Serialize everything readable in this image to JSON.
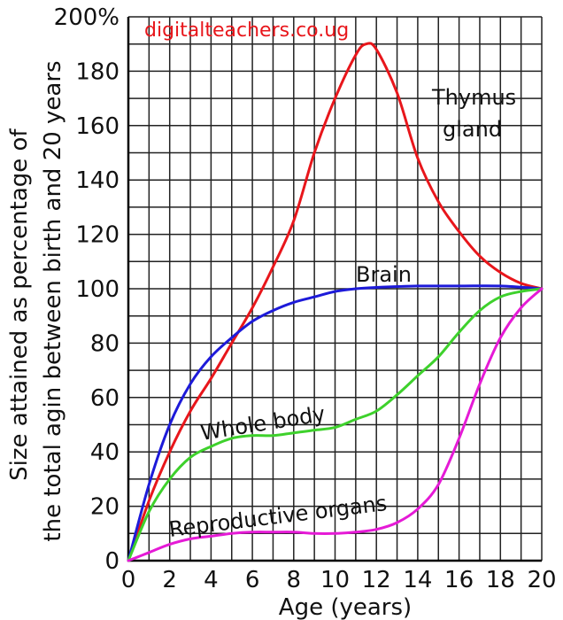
{
  "watermark": "digitalteachers.co.ug",
  "chart_data": {
    "type": "line",
    "title": "",
    "xlabel": "Age (years)",
    "ylabel": "Size attained as percentage of the total agin between birth and 20 years",
    "xlim": [
      0,
      20
    ],
    "ylim": [
      0,
      200
    ],
    "x_ticks": [
      "0",
      "2",
      "4",
      "6",
      "8",
      "10",
      "12",
      "14",
      "16",
      "18",
      "20"
    ],
    "y_ticks": [
      "0",
      "20",
      "40",
      "60",
      "80",
      "100",
      "120",
      "140",
      "160",
      "180",
      "200%"
    ],
    "grid": true,
    "series": [
      {
        "name": "Thymus gland",
        "color": "#e8161b",
        "points": [
          [
            0,
            0
          ],
          [
            1,
            22
          ],
          [
            2,
            40
          ],
          [
            3,
            55
          ],
          [
            4,
            67
          ],
          [
            5,
            80
          ],
          [
            6,
            93
          ],
          [
            7,
            108
          ],
          [
            8,
            125
          ],
          [
            9,
            150
          ],
          [
            10,
            170
          ],
          [
            11,
            186
          ],
          [
            11.5,
            190
          ],
          [
            12,
            188
          ],
          [
            13,
            172
          ],
          [
            14,
            148
          ],
          [
            15,
            132
          ],
          [
            16,
            121
          ],
          [
            17,
            112
          ],
          [
            18,
            106
          ],
          [
            19,
            102
          ],
          [
            20,
            100
          ]
        ]
      },
      {
        "name": "Brain",
        "color": "#1d1ad9",
        "points": [
          [
            0,
            0
          ],
          [
            1,
            28
          ],
          [
            2,
            50
          ],
          [
            3,
            65
          ],
          [
            4,
            75
          ],
          [
            5,
            82
          ],
          [
            6,
            88
          ],
          [
            7,
            92
          ],
          [
            8,
            95
          ],
          [
            9,
            97
          ],
          [
            10,
            99
          ],
          [
            11,
            100
          ],
          [
            12,
            100.5
          ],
          [
            14,
            101
          ],
          [
            16,
            101
          ],
          [
            18,
            101
          ],
          [
            20,
            100
          ]
        ]
      },
      {
        "name": "Whole body",
        "color": "#3ed12c",
        "points": [
          [
            0,
            0
          ],
          [
            1,
            18
          ],
          [
            2,
            30
          ],
          [
            3,
            38
          ],
          [
            4,
            42
          ],
          [
            5,
            45
          ],
          [
            6,
            46
          ],
          [
            7,
            46
          ],
          [
            8,
            47
          ],
          [
            9,
            48
          ],
          [
            10,
            49
          ],
          [
            11,
            52
          ],
          [
            12,
            55
          ],
          [
            13,
            61
          ],
          [
            14,
            68
          ],
          [
            15,
            75
          ],
          [
            16,
            84
          ],
          [
            17,
            92
          ],
          [
            18,
            97
          ],
          [
            19,
            99
          ],
          [
            20,
            100
          ]
        ]
      },
      {
        "name": "Reproductive organs",
        "color": "#e51ad6",
        "points": [
          [
            0,
            0
          ],
          [
            1,
            3
          ],
          [
            2,
            6
          ],
          [
            3,
            8
          ],
          [
            4,
            9
          ],
          [
            5,
            10
          ],
          [
            6,
            10.5
          ],
          [
            7,
            10.5
          ],
          [
            8,
            10.5
          ],
          [
            9,
            10
          ],
          [
            10,
            10
          ],
          [
            11,
            10.5
          ],
          [
            12,
            11.5
          ],
          [
            13,
            14
          ],
          [
            14,
            19
          ],
          [
            15,
            28
          ],
          [
            16,
            45
          ],
          [
            17,
            65
          ],
          [
            18,
            82
          ],
          [
            19,
            93
          ],
          [
            20,
            100
          ]
        ]
      }
    ]
  }
}
